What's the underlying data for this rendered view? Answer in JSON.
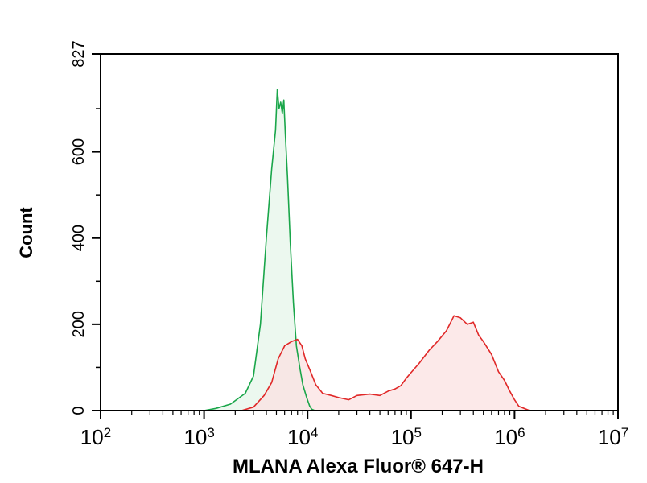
{
  "chart_data": {
    "type": "area",
    "xlabel": "MLANA Alexa Fluor® 647-H",
    "ylabel": "Count",
    "x_scale": "log10",
    "xlim": [
      100,
      10000000
    ],
    "ylim": [
      0,
      827
    ],
    "x_ticks": [
      {
        "base": "10",
        "exp": "2"
      },
      {
        "base": "10",
        "exp": "3"
      },
      {
        "base": "10",
        "exp": "4"
      },
      {
        "base": "10",
        "exp": "5"
      },
      {
        "base": "10",
        "exp": "6"
      },
      {
        "base": "10",
        "exp": "7"
      }
    ],
    "y_ticks": [
      "0",
      "200",
      "400",
      "600",
      "827"
    ],
    "series": [
      {
        "color": "#1aa64a",
        "fill": "#e6f5ea",
        "x": [
          1000,
          1300,
          1800,
          2500,
          3000,
          3500,
          4000,
          4500,
          4900,
          5100,
          5300,
          5500,
          5700,
          5900,
          6100,
          6400,
          6800,
          7300,
          7800,
          8400,
          9000,
          9800,
          10500,
          11000,
          11800
        ],
        "y": [
          0,
          5,
          15,
          40,
          80,
          200,
          400,
          560,
          650,
          745,
          700,
          715,
          690,
          720,
          640,
          540,
          390,
          250,
          150,
          100,
          60,
          30,
          10,
          3,
          0
        ]
      },
      {
        "color": "#e02828",
        "fill": "#fbe1e1",
        "x": [
          2300,
          3000,
          3800,
          4500,
          5200,
          6000,
          7000,
          8000,
          8800,
          9500,
          10500,
          12000,
          14000,
          17000,
          20000,
          25000,
          30000,
          40000,
          50000,
          60000,
          70000,
          80000,
          90000,
          100000,
          120000,
          150000,
          180000,
          220000,
          260000,
          300000,
          350000,
          400000,
          450000,
          500000,
          600000,
          700000,
          800000,
          900000,
          1000000,
          1100000,
          1300000,
          1400000
        ],
        "y": [
          0,
          8,
          35,
          65,
          120,
          150,
          160,
          165,
          150,
          120,
          95,
          60,
          40,
          35,
          30,
          25,
          35,
          38,
          35,
          45,
          50,
          58,
          75,
          88,
          110,
          140,
          160,
          185,
          220,
          215,
          200,
          205,
          175,
          160,
          130,
          90,
          70,
          45,
          25,
          10,
          3,
          0
        ]
      }
    ]
  }
}
